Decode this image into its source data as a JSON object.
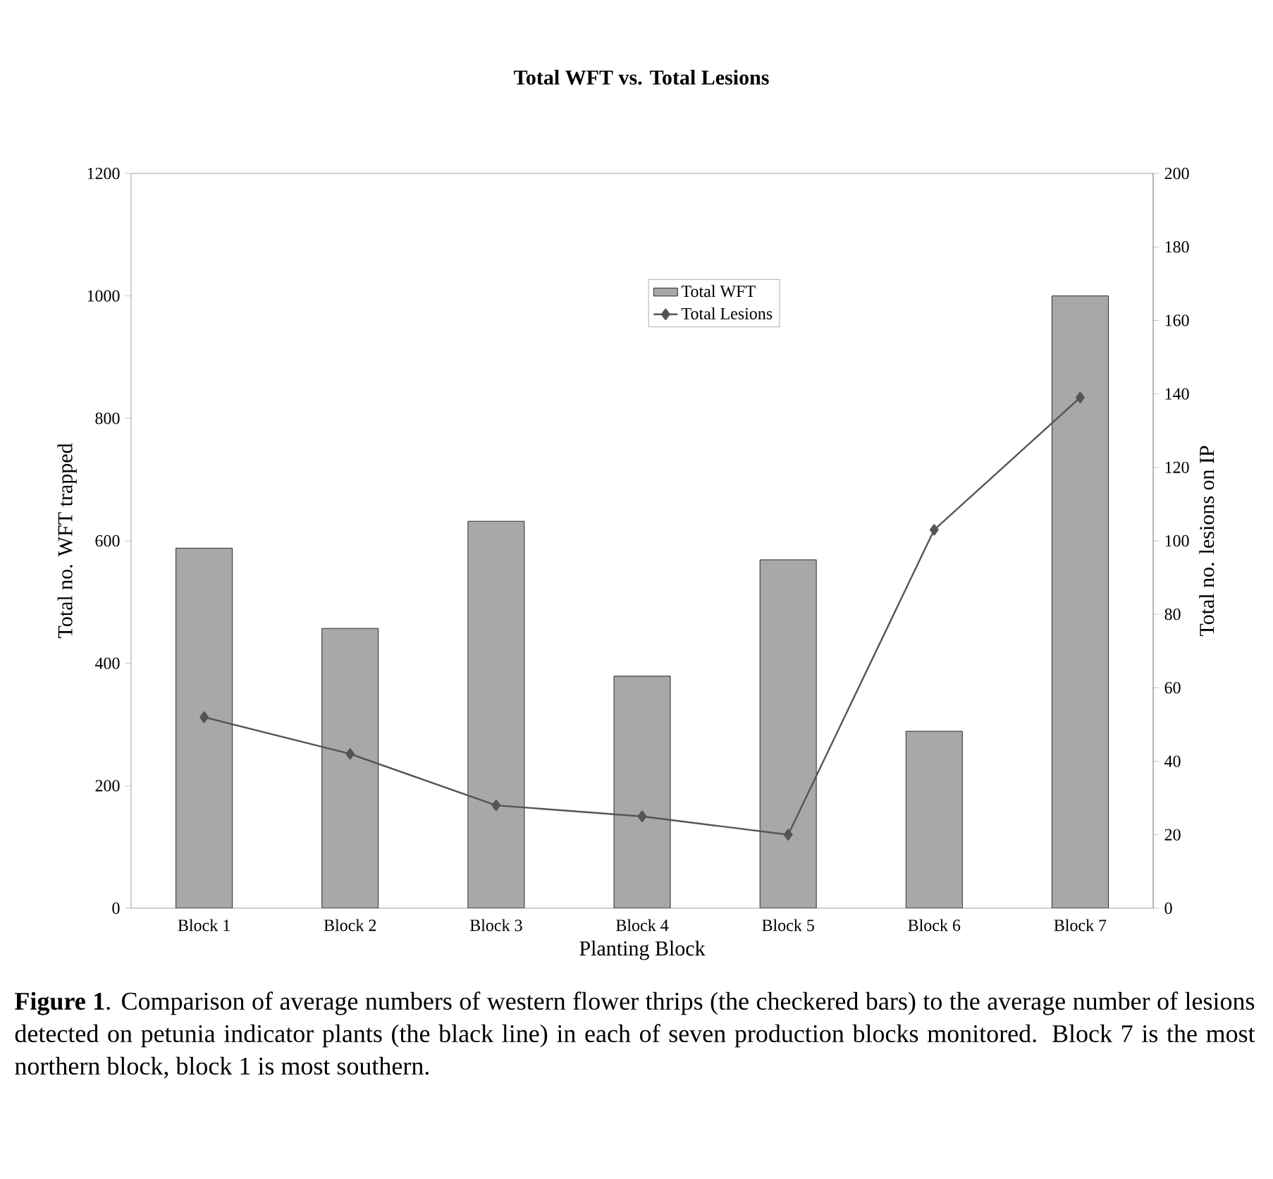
{
  "chart_data": {
    "type": "bar",
    "title": "Total WFT vs. Total Lesions",
    "xlabel": "Planting Block",
    "ylabel": "Total no. WFT trapped",
    "y2label": "Total no. lesions on IP",
    "categories": [
      "Block 1",
      "Block 2",
      "Block 3",
      "Block 4",
      "Block 5",
      "Block 6",
      "Block 7"
    ],
    "series": [
      {
        "name": "Total WFT",
        "color": "#a8a8a8",
        "values": [
          588,
          457,
          632,
          379,
          569,
          289,
          1000
        ]
      },
      {
        "name": "Total Lesions",
        "type": "line",
        "axis": "y2",
        "color": "#555555",
        "marker": "diamond",
        "values": [
          52,
          42,
          28,
          25,
          20,
          103,
          139
        ]
      }
    ],
    "ylim": [
      0,
      1200
    ],
    "yticks": [
      0,
      200,
      400,
      600,
      800,
      1000,
      1200
    ],
    "y2lim": [
      0,
      200
    ],
    "y2ticks": [
      0,
      20,
      40,
      60,
      80,
      100,
      120,
      140,
      160,
      180,
      200
    ],
    "legend": "top",
    "annotations": [
      "**Figure 1**.  Comparison of average numbers of western flower thrips (the checkered bars) to the average number of lesions detected on petunia indicator plants (the black line) in each of seven production blocks monitored.  Block 7 is the most northern block, block 1 is most southern."
    ]
  }
}
